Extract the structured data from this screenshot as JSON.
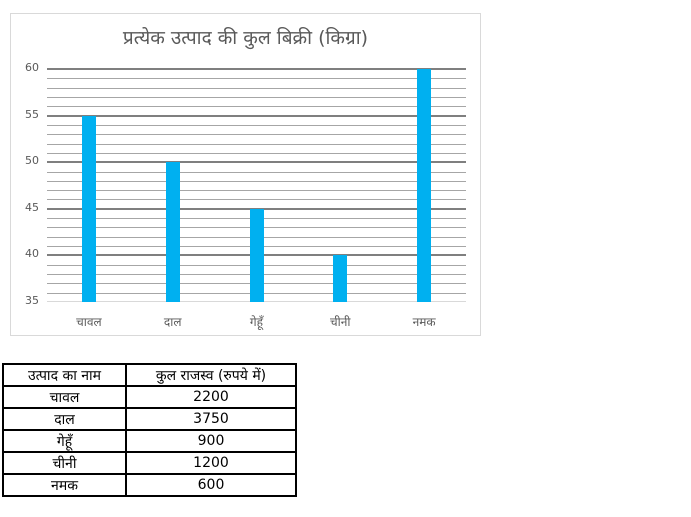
{
  "chart_data": {
    "type": "bar",
    "title": "प्रत्येक उत्पाद की कुल बिक्री (किग्रा)",
    "categories": [
      "चावल",
      "दाल",
      "गेहूँ",
      "चीनी",
      "नमक"
    ],
    "values": [
      55,
      50,
      45,
      40,
      60
    ],
    "xlabel": "",
    "ylabel": "",
    "ylim": [
      35,
      60
    ],
    "yticks": [
      35,
      40,
      45,
      50,
      55,
      60
    ],
    "grid": true,
    "minor_grid_step": 1,
    "bar_color": "#00b0f0",
    "legend": "none"
  },
  "table": {
    "headers": [
      "उत्पाद का नाम",
      "कुल राजस्व (रुपये में)"
    ],
    "rows": [
      [
        "चावल",
        "2200"
      ],
      [
        "दाल",
        "3750"
      ],
      [
        "गेहूँ",
        "900"
      ],
      [
        "चीनी",
        "1200"
      ],
      [
        "नमक",
        "600"
      ]
    ]
  }
}
